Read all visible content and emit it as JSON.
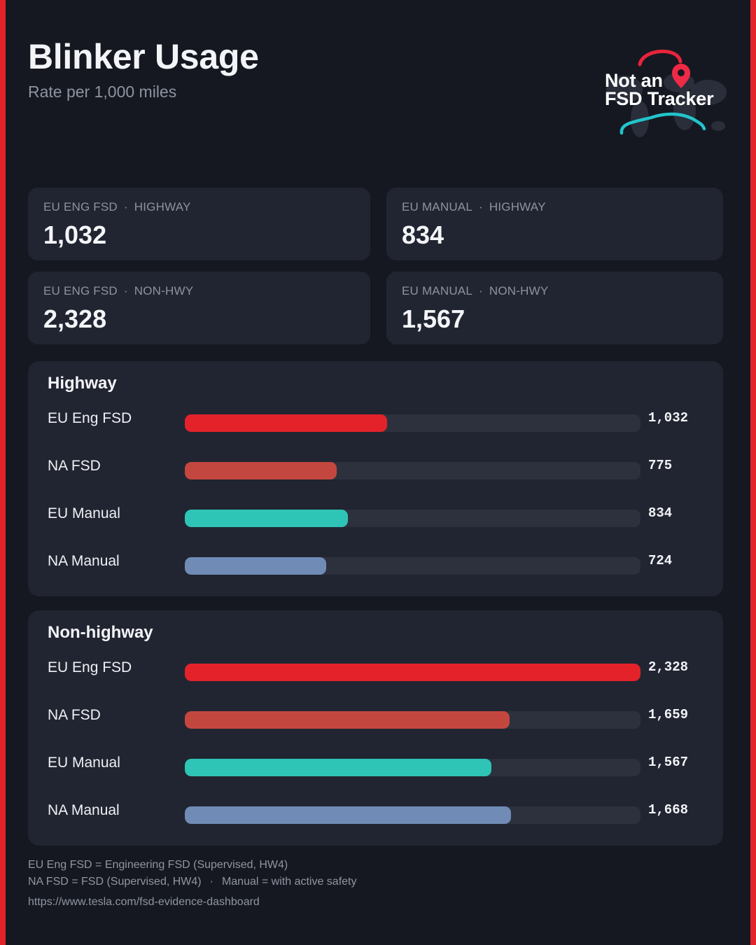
{
  "header": {
    "title": "Blinker Usage",
    "subtitle": "Rate per 1,000 miles"
  },
  "logo": {
    "line1": "Not an",
    "line2": "FSD Tracker",
    "icons": [
      "location-pin-icon",
      "car-silhouette-icon",
      "world-map-icon"
    ]
  },
  "stats": [
    {
      "label_a": "EU ENG FSD",
      "label_b": "HIGHWAY",
      "value": "1,032"
    },
    {
      "label_a": "EU MANUAL",
      "label_b": "HIGHWAY",
      "value": "834"
    },
    {
      "label_a": "EU ENG FSD",
      "label_b": "NON-HWY",
      "value": "2,328"
    },
    {
      "label_a": "EU MANUAL",
      "label_b": "NON-HWY",
      "value": "1,567"
    }
  ],
  "colors": {
    "background": "#151820",
    "card": "#212531",
    "track": "#2d313e",
    "accent_red": "#e3222a",
    "eu_eng_fsd": "#e3222a",
    "na_fsd": "#c4473f",
    "eu_manual": "#2ec4b6",
    "na_manual": "#708bb5"
  },
  "chart_data": [
    {
      "type": "bar",
      "orientation": "horizontal",
      "title": "Highway",
      "categories": [
        "EU Eng FSD",
        "NA FSD",
        "EU Manual",
        "NA Manual"
      ],
      "values": [
        1032,
        775,
        834,
        724
      ],
      "value_labels": [
        "1,032",
        "775",
        "834",
        "724"
      ],
      "xlim": [
        0,
        2328
      ]
    },
    {
      "type": "bar",
      "orientation": "horizontal",
      "title": "Non-highway",
      "categories": [
        "EU Eng FSD",
        "NA FSD",
        "EU Manual",
        "NA Manual"
      ],
      "values": [
        2328,
        1659,
        1567,
        1668
      ],
      "value_labels": [
        "2,328",
        "1,659",
        "1,567",
        "1,668"
      ],
      "xlim": [
        0,
        2328
      ]
    }
  ],
  "footer": {
    "note1": "EU Eng FSD = Engineering FSD (Supervised, HW4)",
    "note2a": "NA FSD = FSD (Supervised, HW4)",
    "note2_sep": "·",
    "note2b": "Manual = with active safety",
    "url": "https://www.tesla.com/fsd-evidence-dashboard"
  }
}
